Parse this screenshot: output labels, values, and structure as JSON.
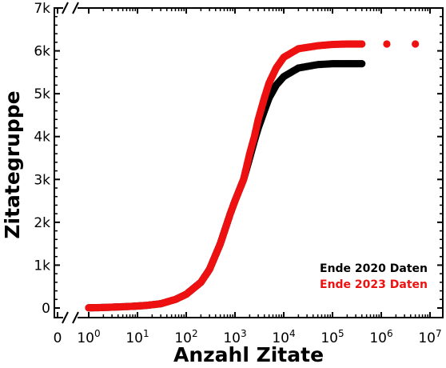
{
  "chart_data": {
    "type": "scatter",
    "title": "",
    "xlabel": "Anzahl Zitate",
    "ylabel": "Zitategruppe",
    "xscale": "log",
    "yscale": "linear",
    "x_zero_tick": "0",
    "xlim_log10": [
      0,
      7
    ],
    "ylim": [
      0,
      7000
    ],
    "x_tick_mantissa": "10",
    "x_tick_exponents": [
      "0",
      "1",
      "2",
      "3",
      "4",
      "5",
      "6",
      "7"
    ],
    "y_ticks": [
      {
        "value": 0,
        "label": "0"
      },
      {
        "value": 1000,
        "label": "1k"
      },
      {
        "value": 2000,
        "label": "2k"
      },
      {
        "value": 3000,
        "label": "3k"
      },
      {
        "value": 4000,
        "label": "4k"
      },
      {
        "value": 5000,
        "label": "5k"
      },
      {
        "value": 6000,
        "label": "6k"
      },
      {
        "value": 7000,
        "label": "7k"
      }
    ],
    "axis_breaks": [
      "bottom",
      "top"
    ],
    "legend_position": "bottom-right",
    "series": [
      {
        "name": "Ende 2020 Daten",
        "color": "#000000",
        "points": [
          [
            1,
            5
          ],
          [
            2,
            12
          ],
          [
            3,
            20
          ],
          [
            5,
            30
          ],
          [
            8,
            40
          ],
          [
            15,
            60
          ],
          [
            30,
            100
          ],
          [
            60,
            200
          ],
          [
            100,
            320
          ],
          [
            200,
            600
          ],
          [
            300,
            900
          ],
          [
            500,
            1500
          ],
          [
            800,
            2200
          ],
          [
            1000,
            2500
          ],
          [
            1500,
            3000
          ],
          [
            2000,
            3500
          ],
          [
            2500,
            3900
          ],
          [
            3000,
            4200
          ],
          [
            4000,
            4600
          ],
          [
            5000,
            4900
          ],
          [
            7000,
            5200
          ],
          [
            10000,
            5400
          ],
          [
            20000,
            5600
          ],
          [
            50000,
            5680
          ],
          [
            100000,
            5700
          ],
          [
            200000,
            5700
          ],
          [
            400000,
            5700
          ]
        ]
      },
      {
        "name": "Ende 2023 Daten",
        "color": "#ee1111",
        "points": [
          [
            1,
            5
          ],
          [
            2,
            12
          ],
          [
            3,
            20
          ],
          [
            5,
            30
          ],
          [
            8,
            40
          ],
          [
            15,
            60
          ],
          [
            30,
            100
          ],
          [
            60,
            200
          ],
          [
            100,
            320
          ],
          [
            200,
            600
          ],
          [
            300,
            900
          ],
          [
            500,
            1500
          ],
          [
            800,
            2200
          ],
          [
            1000,
            2500
          ],
          [
            1500,
            3000
          ],
          [
            2000,
            3600
          ],
          [
            2500,
            4000
          ],
          [
            3000,
            4400
          ],
          [
            4000,
            4900
          ],
          [
            5000,
            5250
          ],
          [
            7000,
            5600
          ],
          [
            10000,
            5850
          ],
          [
            20000,
            6050
          ],
          [
            50000,
            6120
          ],
          [
            100000,
            6150
          ],
          [
            200000,
            6160
          ],
          [
            400000,
            6160
          ],
          [
            1300000,
            6160
          ],
          [
            5000000,
            6160
          ]
        ]
      }
    ]
  }
}
